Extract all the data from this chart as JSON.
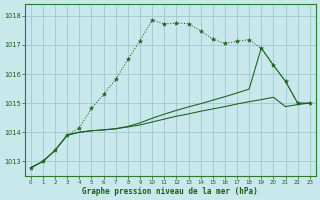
{
  "title": "Graphe pression niveau de la mer (hPa)",
  "bg_color": "#c8e8ec",
  "grid_color": "#a0c8d0",
  "line_color": "#1a5e1a",
  "border_color": "#2d7a2d",
  "y_ticks": [
    1013,
    1014,
    1015,
    1016,
    1017,
    1018
  ],
  "ylim": [
    1012.5,
    1018.4
  ],
  "xlim": [
    -0.5,
    23.5
  ],
  "series_top": [
    1012.78,
    1013.0,
    1013.38,
    1013.9,
    1014.15,
    1014.82,
    1015.3,
    1015.82,
    1016.5,
    1017.15,
    1017.85,
    1017.72,
    1017.75,
    1017.73,
    1017.48,
    1017.2,
    1017.05,
    1017.12,
    1017.18,
    1016.88,
    1016.3,
    1015.75,
    1015.0,
    1015.0
  ],
  "series_mid": [
    1012.78,
    1013.0,
    1013.38,
    1013.9,
    1014.0,
    1014.05,
    1014.08,
    1014.12,
    1014.2,
    1014.32,
    1014.48,
    1014.62,
    1014.75,
    1014.87,
    1014.98,
    1015.1,
    1015.22,
    1015.35,
    1015.48,
    1016.9,
    1016.3,
    1015.75,
    1015.0,
    1015.0
  ],
  "series_bot": [
    1012.78,
    1013.0,
    1013.38,
    1013.9,
    1014.0,
    1014.05,
    1014.08,
    1014.12,
    1014.18,
    1014.25,
    1014.35,
    1014.45,
    1014.55,
    1014.63,
    1014.72,
    1014.8,
    1014.88,
    1014.97,
    1015.05,
    1015.12,
    1015.2,
    1014.88,
    1014.95,
    1015.0
  ]
}
